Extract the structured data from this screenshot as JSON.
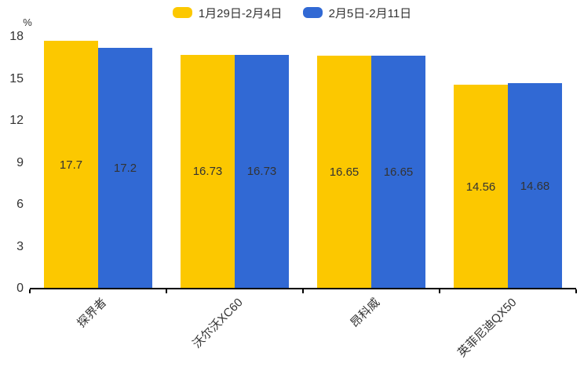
{
  "chart_data": {
    "type": "bar",
    "title": "",
    "ylabel": "%",
    "xlabel": "",
    "categories": [
      "探界者",
      "沃尔沃XC60",
      "昂科威",
      "英菲尼迪QX50"
    ],
    "series": [
      {
        "name": "1月29日-2月4日",
        "color": "#FCC800",
        "values": [
          17.7,
          16.73,
          16.65,
          14.56
        ]
      },
      {
        "name": "2月5日-2月11日",
        "color": "#3169D4",
        "values": [
          17.2,
          16.73,
          16.65,
          14.68
        ]
      }
    ],
    "ylim": [
      0,
      18
    ],
    "yticks": [
      0,
      3,
      6,
      9,
      12,
      15,
      18
    ],
    "grid": false,
    "legend_position": "top",
    "value_labels": "inside-center",
    "text_color": "#333333",
    "axis_color": "#000000"
  }
}
